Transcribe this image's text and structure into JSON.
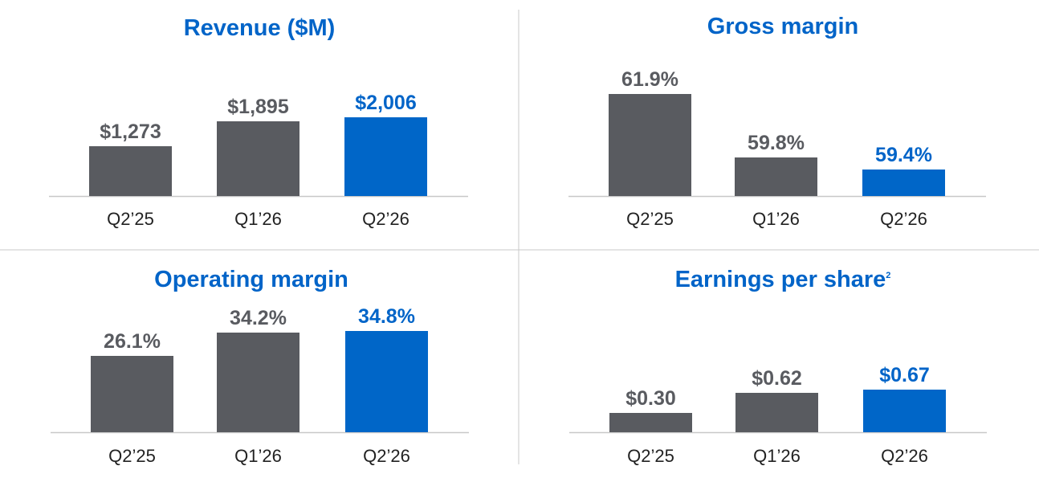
{
  "colors": {
    "title": "#0064c8",
    "bar_prior": "#595b60",
    "bar_current": "#0066c8",
    "label_prior": "#595b60",
    "label_current": "#0064c8",
    "category": "#222222",
    "axis": "#c8c8c8",
    "divider": "#c8c8c8"
  },
  "chart_data": [
    {
      "type": "bar",
      "title": "Revenue ($M)",
      "footnote": "",
      "categories": [
        "Q2’25",
        "Q1’26",
        "Q2’26"
      ],
      "values": [
        1273,
        1895,
        2006
      ],
      "labels": [
        "$1,273",
        "$1,895",
        "$2,006"
      ],
      "highlight_index": 2
    },
    {
      "type": "bar",
      "title": "Gross margin",
      "footnote": "",
      "categories": [
        "Q2’25",
        "Q1’26",
        "Q2’26"
      ],
      "values": [
        61.9,
        59.8,
        59.4
      ],
      "labels": [
        "61.9%",
        "59.8%",
        "59.4%"
      ],
      "highlight_index": 2
    },
    {
      "type": "bar",
      "title": "Operating margin",
      "footnote": "",
      "categories": [
        "Q2’25",
        "Q1’26",
        "Q2’26"
      ],
      "values": [
        26.1,
        34.2,
        34.8
      ],
      "labels": [
        "26.1%",
        "34.2%",
        "34.8%"
      ],
      "highlight_index": 2
    },
    {
      "type": "bar",
      "title": "Earnings per share",
      "footnote": "2",
      "categories": [
        "Q2’25",
        "Q1’26",
        "Q2’26"
      ],
      "values": [
        0.3,
        0.62,
        0.67
      ],
      "labels": [
        "$0.30",
        "$0.62",
        "$0.67"
      ],
      "highlight_index": 2
    }
  ]
}
